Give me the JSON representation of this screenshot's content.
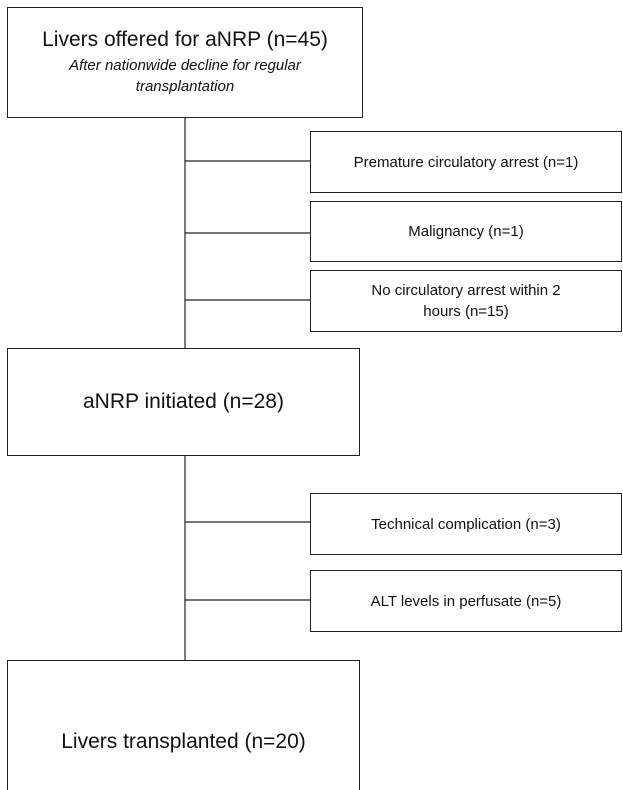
{
  "nodes": [
    {
      "label": "Livers offered for aNRP (n=45)",
      "note": "After nationwide decline for regular transplantation"
    },
    {
      "label": "aNRP initiated (n=28)"
    },
    {
      "label": "Livers transplanted (n=20)"
    }
  ],
  "exclusions": [
    {
      "label": "Premature circulatory arrest (n=1)"
    },
    {
      "label": "Malignancy (n=1)"
    },
    {
      "label": "No circulatory arrest within 2 hours (n=15)"
    },
    {
      "label": "Technical complication (n=3)"
    },
    {
      "label": "ALT levels in perfusate (n=5)"
    }
  ]
}
